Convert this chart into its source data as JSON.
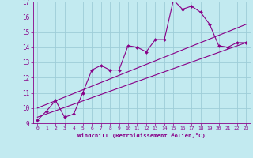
{
  "title": "",
  "xlabel": "Windchill (Refroidissement éolien,°C)",
  "xlim": [
    -0.5,
    23.5
  ],
  "ylim": [
    9,
    17
  ],
  "xticks": [
    0,
    1,
    2,
    3,
    4,
    5,
    6,
    7,
    8,
    9,
    10,
    11,
    12,
    13,
    14,
    15,
    16,
    17,
    18,
    19,
    20,
    21,
    22,
    23
  ],
  "yticks": [
    9,
    10,
    11,
    12,
    13,
    14,
    15,
    16,
    17
  ],
  "bg_color": "#c2eaf0",
  "grid_color": "#9ecdd8",
  "line_color": "#880088",
  "data_x": [
    0,
    1,
    2,
    3,
    4,
    5,
    6,
    7,
    8,
    9,
    10,
    11,
    12,
    13,
    14,
    15,
    16,
    17,
    18,
    19,
    20,
    21,
    22,
    23
  ],
  "data_y": [
    9.2,
    9.8,
    10.5,
    9.4,
    9.6,
    11.0,
    12.5,
    12.8,
    12.5,
    12.5,
    14.1,
    14.0,
    13.7,
    14.5,
    14.5,
    17.1,
    16.5,
    16.7,
    16.3,
    15.5,
    14.1,
    14.0,
    14.3,
    14.3
  ],
  "trend1_x": [
    0,
    23
  ],
  "trend1_y": [
    9.4,
    14.3
  ],
  "trend2_x": [
    0,
    23
  ],
  "trend2_y": [
    10.0,
    15.5
  ]
}
